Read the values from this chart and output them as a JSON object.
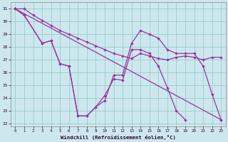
{
  "xlabel": "Windchill (Refroidissement éolien,°C)",
  "background_color": "#cce8ee",
  "line_color": "#993399",
  "grid_color": "#99cccc",
  "xlim": [
    -0.5,
    23.5
  ],
  "ylim": [
    21.8,
    31.5
  ],
  "yticks": [
    22,
    23,
    24,
    25,
    26,
    27,
    28,
    29,
    30,
    31
  ],
  "xticks": [
    0,
    1,
    2,
    3,
    4,
    5,
    6,
    7,
    8,
    9,
    10,
    11,
    12,
    13,
    14,
    15,
    16,
    17,
    18,
    19,
    20,
    21,
    22,
    23
  ],
  "series1_x": [
    0,
    1,
    2,
    3,
    4,
    5,
    6,
    7,
    8,
    9,
    10,
    11,
    12,
    13,
    14,
    15,
    16,
    17,
    18,
    19,
    20,
    21,
    22,
    23
  ],
  "series1_y": [
    31.0,
    31.0,
    30.5,
    30.1,
    29.7,
    29.3,
    29.0,
    28.7,
    28.4,
    28.1,
    27.8,
    27.5,
    27.3,
    27.1,
    27.5,
    27.3,
    27.1,
    27.0,
    27.2,
    27.3,
    27.2,
    27.0,
    27.2,
    27.2
  ],
  "series2_x": [
    0,
    1,
    3,
    4,
    5,
    6,
    7,
    8,
    9,
    10,
    11,
    12,
    13,
    14,
    15,
    16,
    17,
    18,
    19,
    20,
    21,
    22,
    23
  ],
  "series2_y": [
    31.0,
    30.5,
    28.3,
    28.5,
    26.7,
    26.5,
    22.6,
    22.6,
    23.3,
    23.8,
    25.8,
    25.8,
    28.3,
    29.3,
    29.0,
    28.7,
    27.8,
    27.5,
    27.5,
    27.5,
    26.5,
    24.3,
    22.3
  ],
  "series3_x": [
    0,
    1,
    3,
    4,
    5,
    6,
    7,
    8,
    9,
    10,
    11,
    12,
    13,
    14,
    15,
    16,
    17,
    18,
    19,
    20,
    21,
    22,
    23
  ],
  "series3_y": [
    31.0,
    30.5,
    28.3,
    28.5,
    26.7,
    26.5,
    22.6,
    22.6,
    23.3,
    24.2,
    25.5,
    25.4,
    27.8,
    27.8,
    27.5,
    26.5,
    24.8,
    23.0,
    22.3,
    null,
    null,
    null,
    null
  ]
}
